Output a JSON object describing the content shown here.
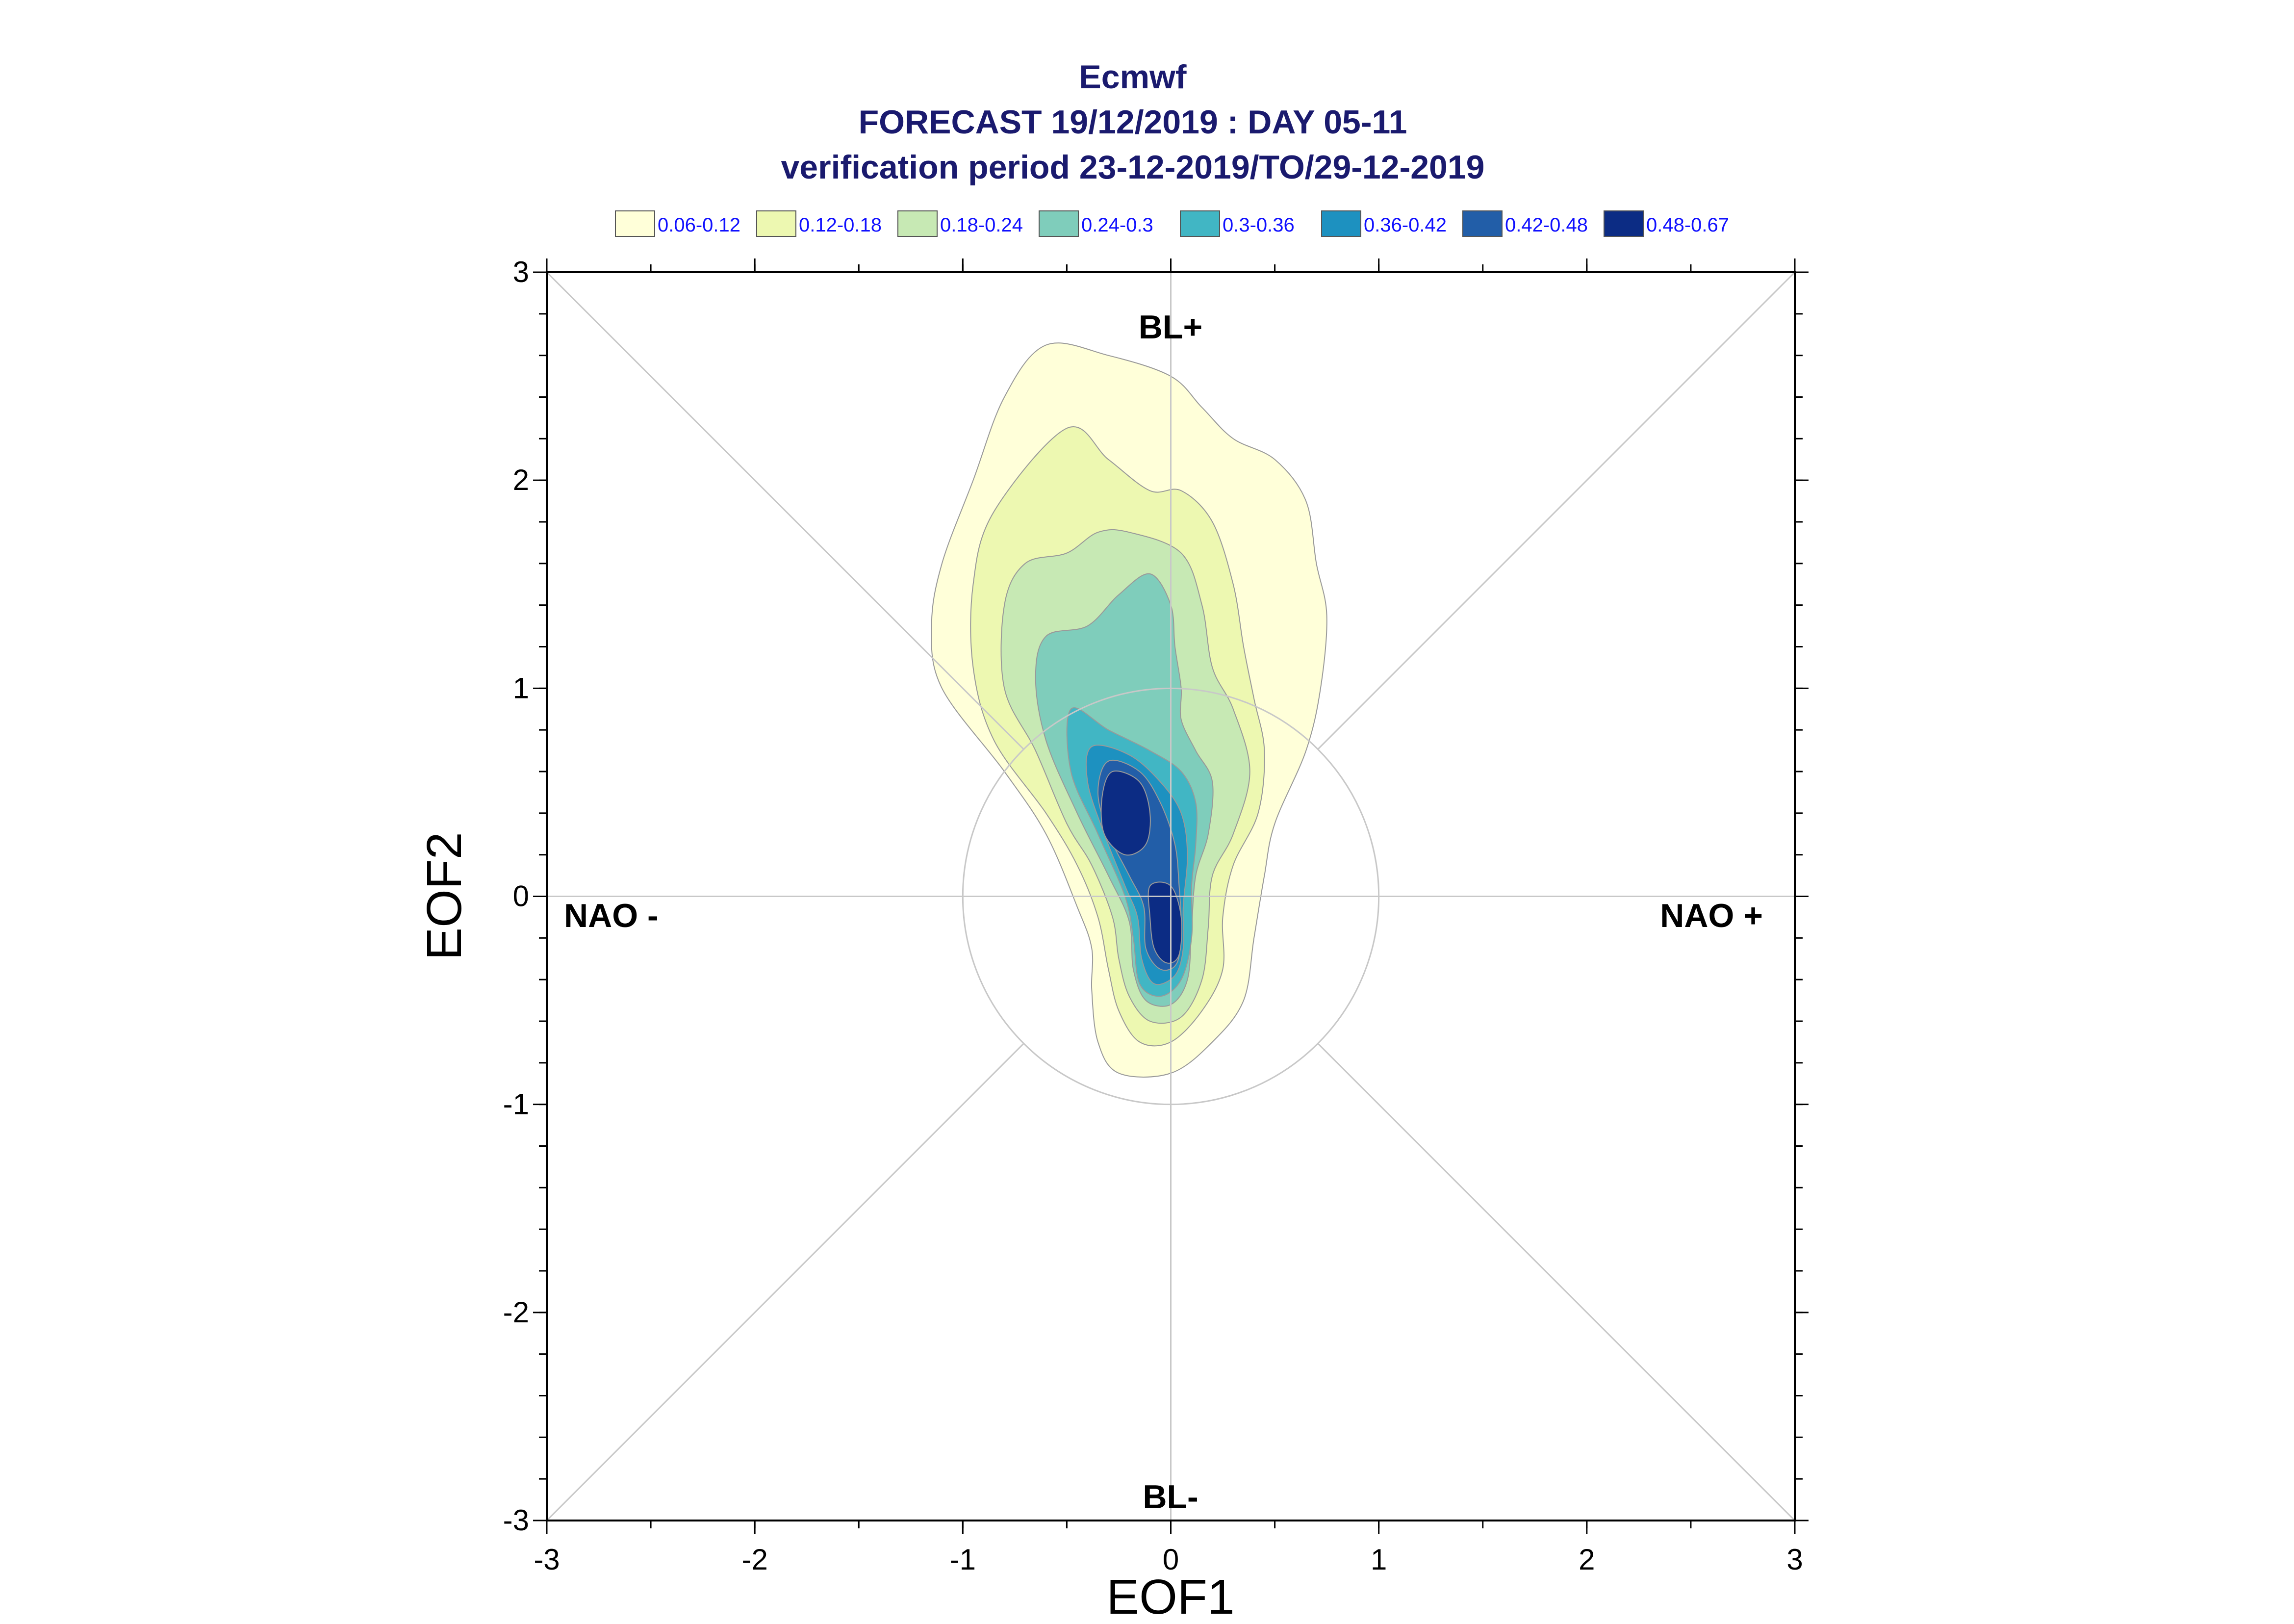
{
  "chart_data": {
    "type": "contour",
    "title": [
      "Ecmwf",
      "FORECAST 19/12/2019 : DAY 05-11",
      "verification period 23-12-2019/TO/29-12-2019"
    ],
    "xlabel": "EOF1",
    "ylabel": "EOF2",
    "xlim": [
      -3,
      3
    ],
    "ylim": [
      -3,
      3
    ],
    "xticks": [
      -3,
      -2,
      -1,
      0,
      1,
      2,
      3
    ],
    "yticks": [
      -3,
      -2,
      -1,
      0,
      1,
      2,
      3
    ],
    "region_labels": {
      "top": "BL+",
      "bottom": "BL-",
      "left": "NAO -",
      "right": "NAO +"
    },
    "reference_circle_radius": 1,
    "legend": [
      {
        "label": "0.06-0.12",
        "color": "#ffffd9"
      },
      {
        "label": "0.12-0.18",
        "color": "#edf8b1"
      },
      {
        "label": "0.18-0.24",
        "color": "#c7e9b4"
      },
      {
        "label": "0.24-0.3",
        "color": "#7fcdbb"
      },
      {
        "label": "0.3-0.36",
        "color": "#41b6c4"
      },
      {
        "label": "0.36-0.42",
        "color": "#1d91c0"
      },
      {
        "label": "0.42-0.48",
        "color": "#225ea8"
      },
      {
        "label": "0.48-0.67",
        "color": "#0c2c84"
      }
    ],
    "contours": [
      {
        "level": "0.06-0.12",
        "points": [
          [
            -0.6,
            2.65
          ],
          [
            -0.3,
            2.6
          ],
          [
            0,
            2.5
          ],
          [
            0.15,
            2.35
          ],
          [
            0.3,
            2.2
          ],
          [
            0.5,
            2.1
          ],
          [
            0.65,
            1.9
          ],
          [
            0.7,
            1.6
          ],
          [
            0.75,
            1.35
          ],
          [
            0.72,
            1.0
          ],
          [
            0.65,
            0.7
          ],
          [
            0.5,
            0.35
          ],
          [
            0.45,
            0.1
          ],
          [
            0.4,
            -0.2
          ],
          [
            0.35,
            -0.5
          ],
          [
            0.2,
            -0.7
          ],
          [
            0,
            -0.85
          ],
          [
            -0.25,
            -0.85
          ],
          [
            -0.35,
            -0.7
          ],
          [
            -0.38,
            -0.45
          ],
          [
            -0.38,
            -0.25
          ],
          [
            -0.45,
            -0.05
          ],
          [
            -0.6,
            0.3
          ],
          [
            -0.8,
            0.6
          ],
          [
            -1.1,
            1.0
          ],
          [
            -1.15,
            1.3
          ],
          [
            -1.1,
            1.6
          ],
          [
            -0.95,
            2.0
          ],
          [
            -0.8,
            2.4
          ]
        ]
      },
      {
        "level": "0.12-0.18",
        "points": [
          [
            -0.5,
            2.25
          ],
          [
            -0.3,
            2.1
          ],
          [
            -0.1,
            1.95
          ],
          [
            0.05,
            1.95
          ],
          [
            0.2,
            1.8
          ],
          [
            0.3,
            1.5
          ],
          [
            0.35,
            1.2
          ],
          [
            0.4,
            0.95
          ],
          [
            0.45,
            0.7
          ],
          [
            0.42,
            0.4
          ],
          [
            0.3,
            0.15
          ],
          [
            0.25,
            -0.1
          ],
          [
            0.25,
            -0.35
          ],
          [
            0.15,
            -0.55
          ],
          [
            0,
            -0.7
          ],
          [
            -0.15,
            -0.7
          ],
          [
            -0.25,
            -0.55
          ],
          [
            -0.3,
            -0.35
          ],
          [
            -0.35,
            -0.1
          ],
          [
            -0.45,
            0.15
          ],
          [
            -0.6,
            0.4
          ],
          [
            -0.85,
            0.75
          ],
          [
            -0.95,
            1.1
          ],
          [
            -0.95,
            1.5
          ],
          [
            -0.85,
            1.85
          ]
        ]
      },
      {
        "level": "0.18-0.24",
        "points": [
          [
            -0.5,
            1.65
          ],
          [
            -0.35,
            1.75
          ],
          [
            -0.2,
            1.75
          ],
          [
            0.05,
            1.65
          ],
          [
            0.15,
            1.4
          ],
          [
            0.2,
            1.1
          ],
          [
            0.3,
            0.9
          ],
          [
            0.38,
            0.6
          ],
          [
            0.3,
            0.3
          ],
          [
            0.2,
            0.1
          ],
          [
            0.18,
            -0.15
          ],
          [
            0.15,
            -0.4
          ],
          [
            0.05,
            -0.58
          ],
          [
            -0.1,
            -0.6
          ],
          [
            -0.2,
            -0.48
          ],
          [
            -0.25,
            -0.3
          ],
          [
            -0.28,
            -0.1
          ],
          [
            -0.38,
            0.15
          ],
          [
            -0.5,
            0.35
          ],
          [
            -0.65,
            0.7
          ],
          [
            -0.8,
            1.0
          ],
          [
            -0.8,
            1.4
          ],
          [
            -0.7,
            1.6
          ]
        ]
      },
      {
        "level": "0.24-0.3",
        "points": [
          [
            -0.25,
            1.45
          ],
          [
            -0.1,
            1.55
          ],
          [
            0,
            1.4
          ],
          [
            0.02,
            1.2
          ],
          [
            0.05,
            1.0
          ],
          [
            0.05,
            0.85
          ],
          [
            0.12,
            0.7
          ],
          [
            0.2,
            0.55
          ],
          [
            0.18,
            0.3
          ],
          [
            0.12,
            0.1
          ],
          [
            0.1,
            -0.15
          ],
          [
            0.08,
            -0.4
          ],
          [
            0,
            -0.52
          ],
          [
            -0.12,
            -0.5
          ],
          [
            -0.18,
            -0.35
          ],
          [
            -0.2,
            -0.12
          ],
          [
            -0.3,
            0.1
          ],
          [
            -0.45,
            0.4
          ],
          [
            -0.6,
            0.75
          ],
          [
            -0.65,
            1.05
          ],
          [
            -0.6,
            1.25
          ],
          [
            -0.4,
            1.3
          ]
        ]
      },
      {
        "level": "0.3-0.36",
        "points": [
          [
            -0.48,
            0.9
          ],
          [
            -0.3,
            0.8
          ],
          [
            -0.1,
            0.7
          ],
          [
            0.05,
            0.6
          ],
          [
            0.12,
            0.45
          ],
          [
            0.12,
            0.25
          ],
          [
            0.1,
            0.05
          ],
          [
            0.1,
            -0.2
          ],
          [
            0.05,
            -0.4
          ],
          [
            -0.05,
            -0.48
          ],
          [
            -0.15,
            -0.42
          ],
          [
            -0.18,
            -0.2
          ],
          [
            -0.22,
            0.0
          ],
          [
            -0.35,
            0.3
          ],
          [
            -0.48,
            0.6
          ]
        ]
      },
      {
        "level": "0.36-0.42",
        "points": [
          [
            -0.38,
            0.72
          ],
          [
            -0.2,
            0.68
          ],
          [
            -0.05,
            0.55
          ],
          [
            0.05,
            0.4
          ],
          [
            0.08,
            0.2
          ],
          [
            0.06,
            -0.05
          ],
          [
            0.06,
            -0.25
          ],
          [
            0.02,
            -0.38
          ],
          [
            -0.08,
            -0.42
          ],
          [
            -0.14,
            -0.3
          ],
          [
            -0.16,
            -0.1
          ],
          [
            -0.22,
            0.05
          ],
          [
            -0.32,
            0.3
          ],
          [
            -0.4,
            0.55
          ]
        ]
      },
      {
        "level": "0.42-0.48",
        "points": [
          [
            -0.3,
            0.65
          ],
          [
            -0.15,
            0.6
          ],
          [
            -0.05,
            0.45
          ],
          [
            0.02,
            0.25
          ],
          [
            0.04,
            0.05
          ],
          [
            0.05,
            -0.15
          ],
          [
            0.03,
            -0.32
          ],
          [
            -0.05,
            -0.35
          ],
          [
            -0.12,
            -0.25
          ],
          [
            -0.13,
            -0.05
          ],
          [
            -0.2,
            0.1
          ],
          [
            -0.3,
            0.3
          ],
          [
            -0.35,
            0.5
          ]
        ]
      },
      {
        "level": "0.48-0.67",
        "points": [
          [
            -0.28,
            0.6
          ],
          [
            -0.15,
            0.55
          ],
          [
            -0.1,
            0.4
          ],
          [
            -0.12,
            0.25
          ],
          [
            -0.22,
            0.2
          ],
          [
            -0.32,
            0.3
          ],
          [
            -0.33,
            0.48
          ]
        ]
      },
      {
        "level": "0.48-0.67",
        "points": [
          [
            -0.1,
            0.05
          ],
          [
            0,
            0.05
          ],
          [
            0.05,
            -0.1
          ],
          [
            0.04,
            -0.28
          ],
          [
            -0.02,
            -0.32
          ],
          [
            -0.08,
            -0.25
          ],
          [
            -0.1,
            -0.1
          ]
        ]
      }
    ]
  }
}
